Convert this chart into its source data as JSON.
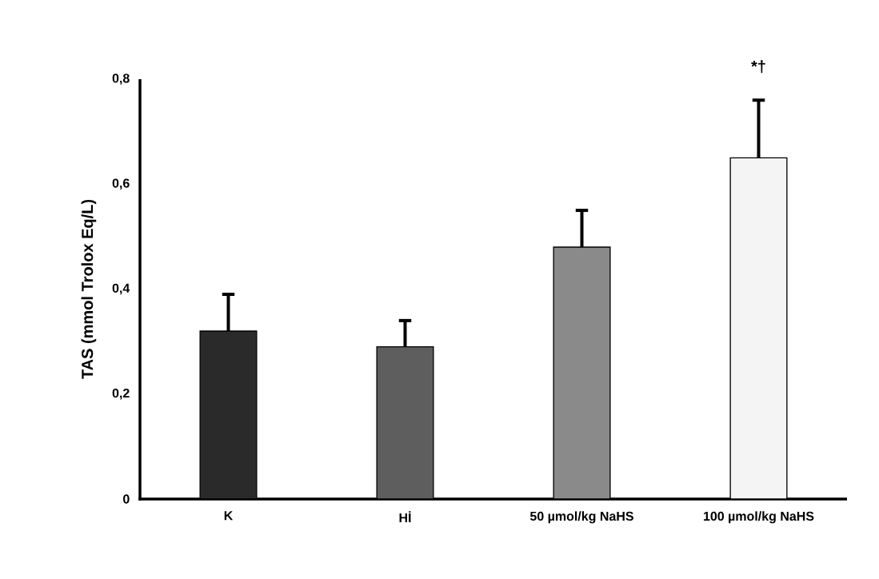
{
  "chart_data": {
    "type": "bar",
    "ylabel": "TAS (mmol Trolox Eq/L)",
    "categories": [
      "K",
      "Hİ",
      "50 µmol/kg NaHS",
      "100 µmol/kg NaHS"
    ],
    "values": [
      0.32,
      0.29,
      0.48,
      0.65
    ],
    "colors": [
      "#2a2a2a",
      "#5e5e5e",
      "#8a8a8a",
      "#f4f4f4"
    ],
    "errors": [
      [
        0.32,
        0.39
      ],
      [
        0.29,
        0.34
      ],
      [
        0.48,
        0.55
      ],
      [
        0.65,
        0.76
      ]
    ],
    "ylim": [
      0,
      0.8
    ],
    "yticks": [
      0,
      {
        "value": 0.2,
        "label": "0,2"
      },
      {
        "value": 0.4,
        "label": "0,4"
      },
      {
        "value": 0.6,
        "label": "0,6"
      },
      {
        "value": 0.8,
        "label": "0,8"
      }
    ],
    "annotations": [
      {
        "text": "*†",
        "x": "100 µmol/kg NaHS",
        "y": 0.76
      }
    ]
  }
}
